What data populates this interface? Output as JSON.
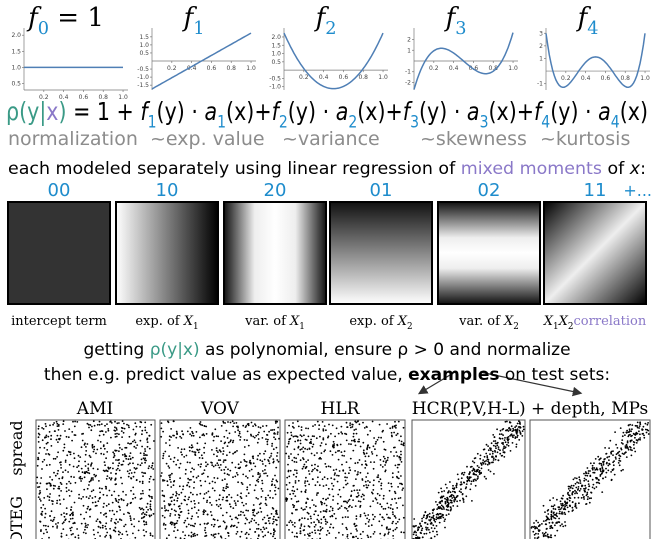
{
  "basis_plots": [
    {
      "title": [
        {
          "t": "f",
          "s": "it"
        },
        {
          "t": "0",
          "s": "sub blue"
        },
        {
          "t": " = 1",
          "s": ""
        }
      ],
      "ylim": [
        0.3,
        2.1
      ],
      "yticks": [
        "0.5",
        "1.0",
        "1.5",
        "2.0"
      ],
      "xticks": [
        "0.2",
        "0.4",
        "0.6",
        "0.8",
        "1.0"
      ]
    },
    {
      "title": [
        {
          "t": "f",
          "s": "it"
        },
        {
          "t": "1",
          "s": "sub blue"
        }
      ],
      "ylim": [
        -1.8,
        1.8
      ],
      "yticks": [
        "-1.5",
        "-1.0",
        "-0.5",
        "0.5",
        "1.0",
        "1.5"
      ],
      "xticks": [
        "0.2",
        "0.4",
        "0.6",
        "0.8",
        "1.0"
      ]
    },
    {
      "title": [
        {
          "t": "f",
          "s": "it"
        },
        {
          "t": "2",
          "s": "sub blue"
        }
      ],
      "ylim": [
        -1.2,
        2.3
      ],
      "yticks": [
        "-1.0",
        "-0.5",
        "0.5",
        "1.0",
        "1.5",
        "2.0"
      ],
      "xticks": [
        "0.2",
        "0.4",
        "0.6",
        "0.8",
        "1.0"
      ]
    },
    {
      "title": [
        {
          "t": "f",
          "s": "it"
        },
        {
          "t": "3",
          "s": "sub blue"
        }
      ],
      "ylim": [
        -2.7,
        2.7
      ],
      "yticks": [
        "-2",
        "-1",
        "1",
        "2"
      ],
      "xticks": [
        "0.2",
        "0.4",
        "0.6",
        "0.8",
        "1.0"
      ]
    },
    {
      "title": [
        {
          "t": "f",
          "s": "it"
        },
        {
          "t": "4",
          "s": "sub blue"
        }
      ],
      "ylim": [
        -1.5,
        3.1
      ],
      "yticks": [
        "-1",
        "1",
        "2",
        "3"
      ],
      "xticks": [
        "0.2",
        "0.4",
        "0.6",
        "0.8",
        "1.0"
      ]
    }
  ],
  "formula": [
    {
      "t": "ρ(",
      "s": "teal"
    },
    {
      "t": "y",
      "s": "teal"
    },
    {
      "t": "|",
      "s": "teal"
    },
    {
      "t": "x",
      "s": "purple"
    },
    {
      "t": ")",
      "s": "teal"
    },
    {
      "t": " = 1 + ",
      "s": ""
    },
    {
      "t": "f",
      "s": "it"
    },
    {
      "t": "1",
      "s": "sub blue"
    },
    {
      "t": "(y) · ",
      "s": ""
    },
    {
      "t": "a",
      "s": "it"
    },
    {
      "t": "1",
      "s": "sub blue"
    },
    {
      "t": "(x)+",
      "s": ""
    },
    {
      "t": "f",
      "s": "it"
    },
    {
      "t": "2",
      "s": "sub blue"
    },
    {
      "t": "(y) · ",
      "s": ""
    },
    {
      "t": "a",
      "s": "it"
    },
    {
      "t": "2",
      "s": "sub blue"
    },
    {
      "t": "(x)+",
      "s": ""
    },
    {
      "t": "f",
      "s": "it"
    },
    {
      "t": "3",
      "s": "sub blue"
    },
    {
      "t": "(y) · ",
      "s": ""
    },
    {
      "t": "a",
      "s": "it"
    },
    {
      "t": "3",
      "s": "sub blue"
    },
    {
      "t": "(x)+",
      "s": ""
    },
    {
      "t": "f",
      "s": "it"
    },
    {
      "t": "4",
      "s": "sub blue"
    },
    {
      "t": "(y) · ",
      "s": ""
    },
    {
      "t": "a",
      "s": "it"
    },
    {
      "t": "4",
      "s": "sub blue"
    },
    {
      "t": "(x)",
      "s": ""
    }
  ],
  "moment_labels": [
    "normalization",
    "~exp. value",
    "~variance",
    "~skewness",
    "~kurtosis"
  ],
  "description": [
    {
      "t": "each modeled separately using linear regression of ",
      "s": ""
    },
    {
      "t": "mixed moments",
      "s": "purple"
    },
    {
      "t": " of ",
      "s": ""
    },
    {
      "t": "x",
      "s": "it"
    },
    {
      "t": ":",
      "s": ""
    }
  ],
  "moment_images": [
    {
      "code": "00",
      "caption": [
        {
          "t": "intercept term",
          "s": ""
        }
      ]
    },
    {
      "code": "10",
      "caption": [
        {
          "t": "exp. of ",
          "s": ""
        },
        {
          "t": "X",
          "s": "it"
        },
        {
          "t": "1",
          "s": "sub"
        }
      ]
    },
    {
      "code": "20",
      "caption": [
        {
          "t": "var. of ",
          "s": ""
        },
        {
          "t": "X",
          "s": "it"
        },
        {
          "t": "1",
          "s": "sub"
        }
      ]
    },
    {
      "code": "01",
      "caption": [
        {
          "t": "exp. of ",
          "s": ""
        },
        {
          "t": "X",
          "s": "it"
        },
        {
          "t": "2",
          "s": "sub"
        }
      ]
    },
    {
      "code": "02",
      "caption": [
        {
          "t": "var. of ",
          "s": ""
        },
        {
          "t": "X",
          "s": "it"
        },
        {
          "t": "2",
          "s": "sub"
        }
      ]
    },
    {
      "code": "11",
      "caption": [
        {
          "t": "X",
          "s": "it"
        },
        {
          "t": "1",
          "s": "sub"
        },
        {
          "t": "X",
          "s": "it"
        },
        {
          "t": "2",
          "s": "sub"
        },
        {
          "t": "correlation",
          "s": "purple"
        }
      ]
    }
  ],
  "more": "+...",
  "conclusion": [
    [
      {
        "t": "getting ",
        "s": ""
      },
      {
        "t": "ρ(y|x)",
        "s": "teal"
      },
      {
        "t": " as polynomial, ensure ρ > 0 and normalize",
        "s": ""
      }
    ],
    [
      {
        "t": "then e.g. predict value as expected value, ",
        "s": ""
      },
      {
        "t": "examples",
        "s": "bold"
      },
      {
        "t": " on test sets:",
        "s": ""
      }
    ]
  ],
  "examples": {
    "row_labels": [
      "spread",
      "DTEG"
    ],
    "titles": [
      "AMI",
      "VOV",
      "HLR",
      "HCR(P,V,H-L) + depth, MPs"
    ]
  }
}
